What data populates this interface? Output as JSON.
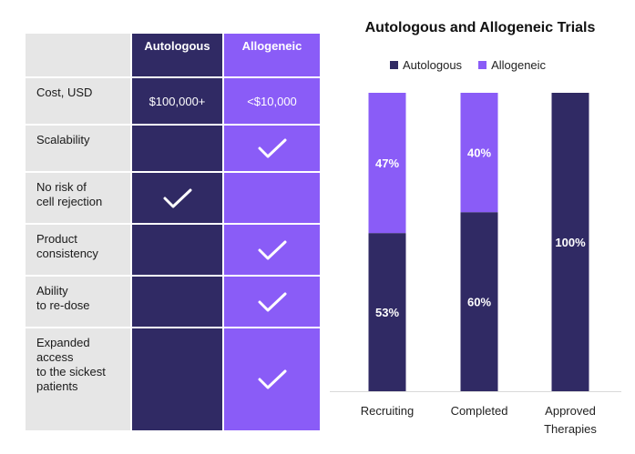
{
  "table": {
    "header": {
      "autologous": "Autologous",
      "allogeneic": "Allogeneic"
    },
    "rows": [
      {
        "label": "Cost, USD",
        "autologous": "$100,000+",
        "allogeneic": "<$10,000"
      },
      {
        "label": "Scalability",
        "autologous": "",
        "allogeneic": "✓"
      },
      {
        "label": "No risk of\ncell rejection",
        "autologous": "✓",
        "allogeneic": ""
      },
      {
        "label": "Product\nconsistency",
        "autologous": "",
        "allogeneic": "✓"
      },
      {
        "label": "Ability\nto re-dose",
        "autologous": "",
        "allogeneic": "✓"
      },
      {
        "label": "Expanded\naccess\nto the sickest\npatients",
        "autologous": "",
        "allogeneic": "✓"
      }
    ]
  },
  "chart_data": {
    "type": "bar",
    "stacked": true,
    "title": "Autologous and Allogeneic Trials",
    "categories": [
      "Recruiting",
      "Completed",
      "Approved\nTherapies"
    ],
    "series": [
      {
        "name": "Autologous",
        "values": [
          53,
          60,
          100
        ],
        "labels": [
          "53%",
          "60%",
          "100%"
        ],
        "color": "#302a64"
      },
      {
        "name": "Allogeneic",
        "values": [
          47,
          40,
          0
        ],
        "labels": [
          "47%",
          "40%",
          ""
        ],
        "color": "#8a5cf7"
      }
    ],
    "ylim": [
      0,
      100
    ],
    "legend": "top",
    "grid": false
  }
}
